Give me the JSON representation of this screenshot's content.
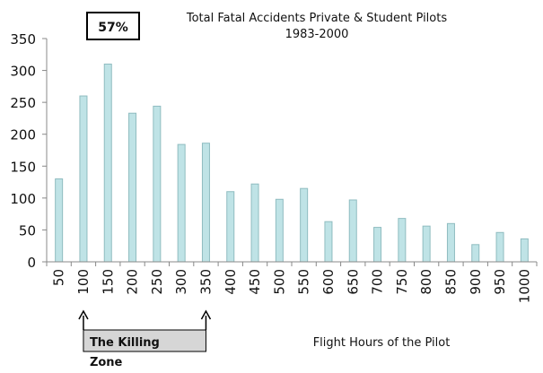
{
  "chart_data": {
    "type": "bar",
    "title": "Total Fatal Accidents Private & Student Pilots",
    "subtitle": "1983-2000",
    "xlabel": "Flight Hours of the Pilot",
    "ylabel": "",
    "ylim": [
      0,
      350
    ],
    "yticks": [
      "0",
      "50",
      "100",
      "150",
      "200",
      "250",
      "300",
      "350"
    ],
    "categories": [
      "50",
      "100",
      "150",
      "200",
      "250",
      "300",
      "350",
      "400",
      "450",
      "500",
      "550",
      "600",
      "650",
      "700",
      "750",
      "800",
      "850",
      "900",
      "950",
      "1000"
    ],
    "values": [
      130,
      260,
      310,
      233,
      244,
      184,
      186,
      110,
      122,
      98,
      115,
      63,
      97,
      54,
      68,
      56,
      60,
      27,
      46,
      36
    ],
    "grid": false,
    "legend": "none",
    "bar_color": "#bfe3e6",
    "bar_edge_color": "#8fbcc0",
    "annotations": {
      "percent_label": "57%",
      "killing_zone_label": "The Killing Zone",
      "range_from": "100",
      "range_to": "350"
    }
  }
}
